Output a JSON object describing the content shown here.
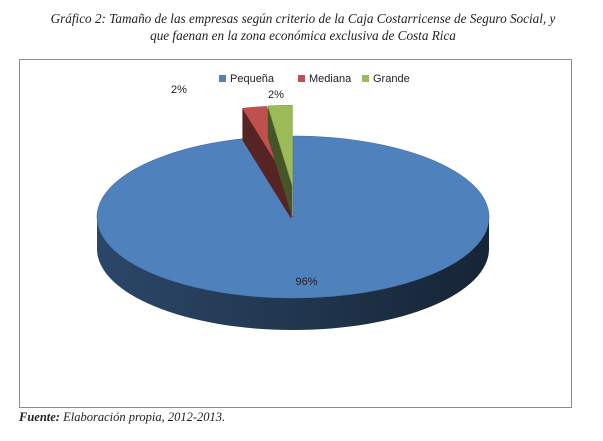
{
  "caption": {
    "prefix": "Gráfico 2:",
    "line1": "Tamaño de las empresas según criterio de la Caja Costarricense de Seguro Social, y",
    "line2": "que faenan en la zona económica exclusiva de Costa Rica"
  },
  "source": {
    "label": "Fuente:",
    "text": "Elaboración propia, 2012-2013."
  },
  "colors": {
    "pequena": "#4f81bd",
    "mediana": "#c0504d",
    "grande": "#9bbb59"
  },
  "chart_data": {
    "type": "pie",
    "style": "3d",
    "title": "",
    "legend_position": "top",
    "categories": [
      "Pequeña",
      "Mediana",
      "Grande"
    ],
    "values": [
      96,
      2,
      2
    ],
    "labels": [
      "96%",
      "2%",
      "2%"
    ],
    "exploded": [
      "Mediana",
      "Grande"
    ]
  }
}
